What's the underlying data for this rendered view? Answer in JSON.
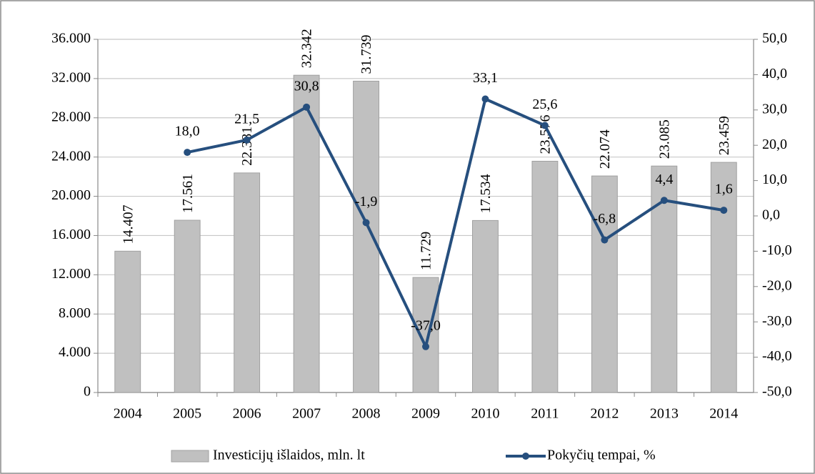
{
  "chart_data": {
    "type": "bar",
    "categories": [
      "2004",
      "2005",
      "2006",
      "2007",
      "2008",
      "2009",
      "2010",
      "2011",
      "2012",
      "2013",
      "2014"
    ],
    "series": [
      {
        "name": "Investicijų išlaidos, mln. lt",
        "type": "bar",
        "color": "#c0c0c0",
        "values": [
          14407,
          17561,
          22381,
          32342,
          31739,
          11729,
          17534,
          23576,
          22074,
          23085,
          23459
        ],
        "value_labels": [
          "14.407",
          "17.561",
          "22.381",
          "32.342",
          "31.739",
          "11.729",
          "17.534",
          "23.576",
          "22.074",
          "23.085",
          "23.459"
        ]
      },
      {
        "name": "Pokyčių tempai, %",
        "type": "line",
        "axis": "y2",
        "color": "#264f7e",
        "values": [
          null,
          18.0,
          21.5,
          30.8,
          -1.9,
          -37.0,
          33.1,
          25.6,
          -6.8,
          4.4,
          1.6
        ],
        "value_labels": [
          null,
          "18,0",
          "21,5",
          "30,8",
          "-1,9",
          "-37,0",
          "33,1",
          "25,6",
          "-6,8",
          "4,4",
          "1,6"
        ]
      }
    ],
    "ylim": [
      0,
      36000
    ],
    "yticks": [
      0,
      {
        "value": 4000,
        "label": "4.000"
      },
      {
        "value": 8000,
        "label": "8.000"
      },
      {
        "value": 12000,
        "label": "12.000"
      },
      {
        "value": 16000,
        "label": "16.000"
      },
      {
        "value": 20000,
        "label": "20.000"
      },
      {
        "value": 24000,
        "label": "24.000"
      },
      {
        "value": 28000,
        "label": "28.000"
      },
      {
        "value": 32000,
        "label": "32.000"
      },
      {
        "value": 36000,
        "label": "36.000"
      }
    ],
    "y2lim": [
      -50,
      50
    ],
    "y2ticks": [
      {
        "value": -50,
        "label": "-50,0"
      },
      {
        "value": -40,
        "label": "-40,0"
      },
      {
        "value": -30,
        "label": "-30,0"
      },
      {
        "value": -20,
        "label": "-20,0"
      },
      {
        "value": -10,
        "label": "-10,0"
      },
      {
        "value": 0,
        "label": "0,0"
      },
      {
        "value": 10,
        "label": "10,0"
      },
      {
        "value": 20,
        "label": "20,0"
      },
      {
        "value": 30,
        "label": "30,0"
      },
      {
        "value": 40,
        "label": "40,0"
      },
      {
        "value": 50,
        "label": "50,0"
      }
    ],
    "grid": true,
    "legend": "bottom"
  }
}
